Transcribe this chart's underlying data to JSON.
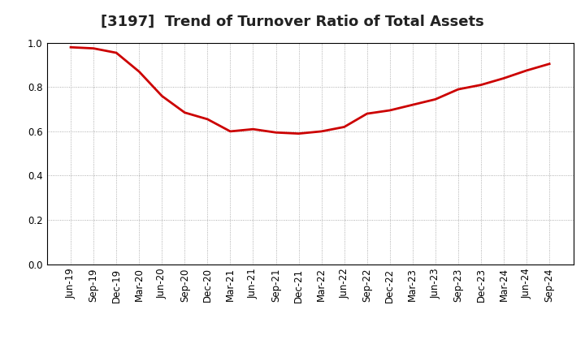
{
  "title": "[3197]  Trend of Turnover Ratio of Total Assets",
  "x_labels": [
    "Jun-19",
    "Sep-19",
    "Dec-19",
    "Mar-20",
    "Jun-20",
    "Sep-20",
    "Dec-20",
    "Mar-21",
    "Jun-21",
    "Sep-21",
    "Dec-21",
    "Mar-22",
    "Jun-22",
    "Sep-22",
    "Dec-22",
    "Mar-23",
    "Jun-23",
    "Sep-23",
    "Dec-23",
    "Mar-24",
    "Jun-24",
    "Sep-24"
  ],
  "y_values": [
    0.98,
    0.975,
    0.955,
    0.87,
    0.76,
    0.685,
    0.655,
    0.6,
    0.61,
    0.595,
    0.59,
    0.6,
    0.62,
    0.68,
    0.695,
    0.72,
    0.745,
    0.79,
    0.81,
    0.84,
    0.875,
    0.905
  ],
  "line_color": "#cc0000",
  "line_width": 2.0,
  "ylim": [
    0.0,
    1.0
  ],
  "yticks": [
    0.0,
    0.2,
    0.4,
    0.6,
    0.8,
    1.0
  ],
  "grid_color": "#999999",
  "background_color": "#ffffff",
  "title_fontsize": 13,
  "tick_fontsize": 8.5,
  "title_color": "#222222",
  "title_fontweight": "bold"
}
